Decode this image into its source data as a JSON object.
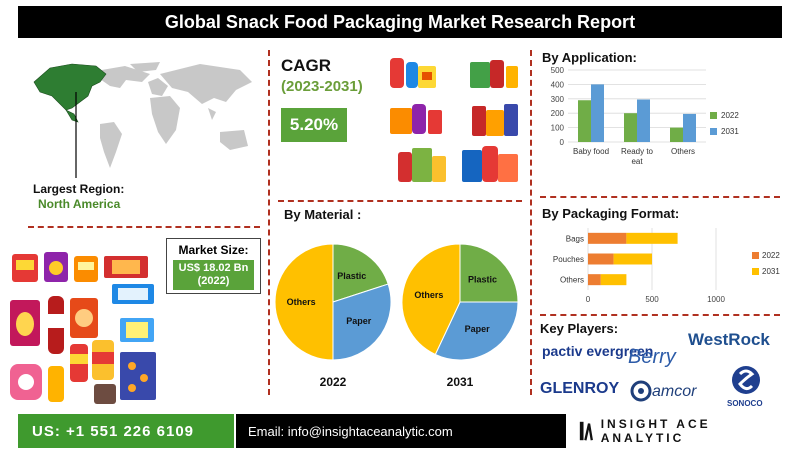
{
  "title": "Global Snack Food Packaging Market Research Report",
  "region": {
    "label": "Largest Region:",
    "value": "North America"
  },
  "cagr": {
    "label": "CAGR",
    "years": "(2023-2031)",
    "value": "5.20%"
  },
  "market_size": {
    "label": "Market Size:",
    "value_line1": "US$ 18.02 Bn",
    "value_line2": "(2022)"
  },
  "sections": {
    "application": "By Application:",
    "material": "By Material :",
    "packaging": "By Packaging Format:",
    "players": "Key Players:"
  },
  "players": [
    "pactiv evergreen",
    "Berry",
    "WestRock",
    "GLENROY",
    "amcor",
    "SONOCO"
  ],
  "footer": {
    "phone": "US: +1 551 226 6109",
    "email": "Email: info@insightaceanalytic.com",
    "brand": "INSIGHT ACE ANALYTIC"
  },
  "colors": {
    "green": "#5aa33a",
    "blue": "#5b9bd5",
    "orange": "#ed7d31",
    "yellow": "#ffc000",
    "dark_green": "#3f9a2e"
  },
  "chart_data": [
    {
      "type": "bar",
      "title": "By Application:",
      "categories": [
        "Baby food",
        "Ready to eat",
        "Others"
      ],
      "series": [
        {
          "name": "2022",
          "values": [
            290,
            200,
            100
          ],
          "color": "#70ad47"
        },
        {
          "name": "2031",
          "values": [
            400,
            295,
            195
          ],
          "color": "#5b9bd5"
        }
      ],
      "ylim": [
        0,
        500
      ],
      "yticks": [
        "0",
        "100",
        "200",
        "300",
        "400",
        "500"
      ],
      "legend": "right"
    },
    {
      "type": "pie",
      "title": "By Material :",
      "label": "2022",
      "slices": [
        {
          "name": "Plastic",
          "value": 20,
          "color": "#70ad47"
        },
        {
          "name": "Paper",
          "value": 30,
          "color": "#5b9bd5"
        },
        {
          "name": "Others",
          "value": 50,
          "color": "#ffc000"
        }
      ]
    },
    {
      "type": "pie",
      "title": "By Material :",
      "label": "2031",
      "slices": [
        {
          "name": "Plastic",
          "value": 25,
          "color": "#70ad47"
        },
        {
          "name": "Paper",
          "value": 32,
          "color": "#5b9bd5"
        },
        {
          "name": "Others",
          "value": 43,
          "color": "#ffc000"
        }
      ]
    },
    {
      "type": "bar",
      "orientation": "horizontal",
      "stacked": true,
      "title": "By Packaging Format:",
      "categories": [
        "Bags",
        "Pouches",
        "Others"
      ],
      "series": [
        {
          "name": "2022",
          "values": [
            300,
            200,
            100
          ],
          "color": "#ed7d31"
        },
        {
          "name": "2031",
          "values": [
            400,
            300,
            200
          ],
          "color": "#ffc000"
        }
      ],
      "xlim": [
        0,
        1000
      ],
      "xticks": [
        "0",
        "500",
        "1000"
      ],
      "legend": "right"
    }
  ]
}
